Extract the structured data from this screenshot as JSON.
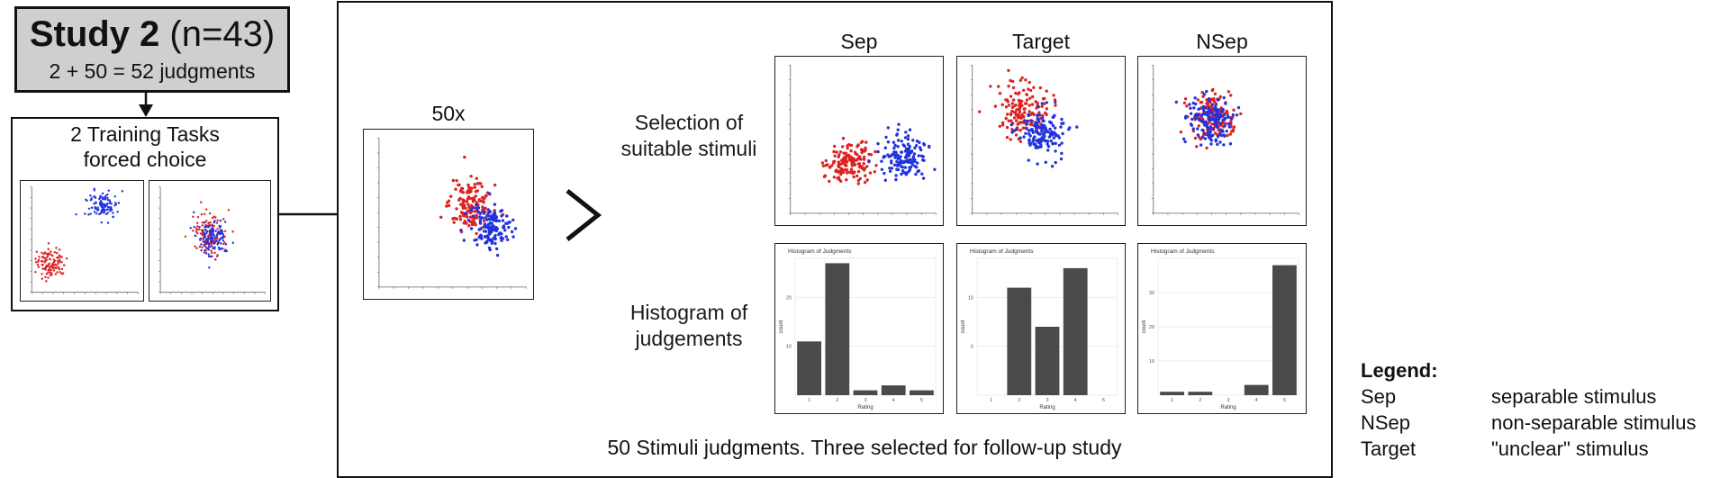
{
  "study": {
    "title_bold": "Study 2",
    "title_rest": " (n=43)",
    "subtitle": "2 + 50 = 52 judgments"
  },
  "training": {
    "line1": "2 Training Tasks",
    "line2": "forced choice"
  },
  "main": {
    "repeat_label": "50x",
    "columns": [
      "Sep",
      "Target",
      "NSep"
    ],
    "row1_label_line1": "Selection of",
    "row1_label_line2": "suitable stimuli",
    "row2_label_line1": "Histogram of",
    "row2_label_line2": "judgements",
    "caption": "50 Stimuli judgments. Three selected for follow-up study",
    "histogram_title": "Histogram of Judgments",
    "histogram_xlabel": "Rating",
    "histogram_ylabel": "count"
  },
  "legend": {
    "heading": "Legend:",
    "items": [
      {
        "key": "Sep",
        "desc": "separable stimulus"
      },
      {
        "key": "NSep",
        "desc": "non-separable stimulus"
      },
      {
        "key": "Target",
        "desc": "\"unclear\" stimulus"
      }
    ]
  },
  "colors": {
    "red": "#dd2222",
    "blue": "#2233dd",
    "bar": "#4a4a4a"
  },
  "chart_data": [
    {
      "type": "bar",
      "name_ref": "Sep",
      "title": "Histogram of Judgments",
      "xlabel": "Rating",
      "ylabel": "count",
      "categories": [
        "1",
        "2",
        "3",
        "4",
        "5"
      ],
      "values": [
        11,
        27,
        1,
        2,
        1
      ],
      "ylim": [
        0,
        28
      ],
      "yticks": [
        10,
        20
      ]
    },
    {
      "type": "bar",
      "name_ref": "Target",
      "title": "Histogram of Judgments",
      "xlabel": "Rating",
      "ylabel": "count",
      "categories": [
        "1",
        "2",
        "3",
        "4",
        "5"
      ],
      "values": [
        0,
        11,
        7,
        13,
        0
      ],
      "ylim": [
        0,
        14
      ],
      "yticks": [
        5,
        10
      ]
    },
    {
      "type": "bar",
      "name_ref": "NSep",
      "title": "Histogram of Judgments",
      "xlabel": "Rating",
      "ylabel": "count",
      "categories": [
        "1",
        "2",
        "3",
        "4",
        "5"
      ],
      "values": [
        1,
        1,
        0,
        3,
        38
      ],
      "ylim": [
        0,
        40
      ],
      "yticks": [
        10,
        20,
        30
      ]
    }
  ]
}
